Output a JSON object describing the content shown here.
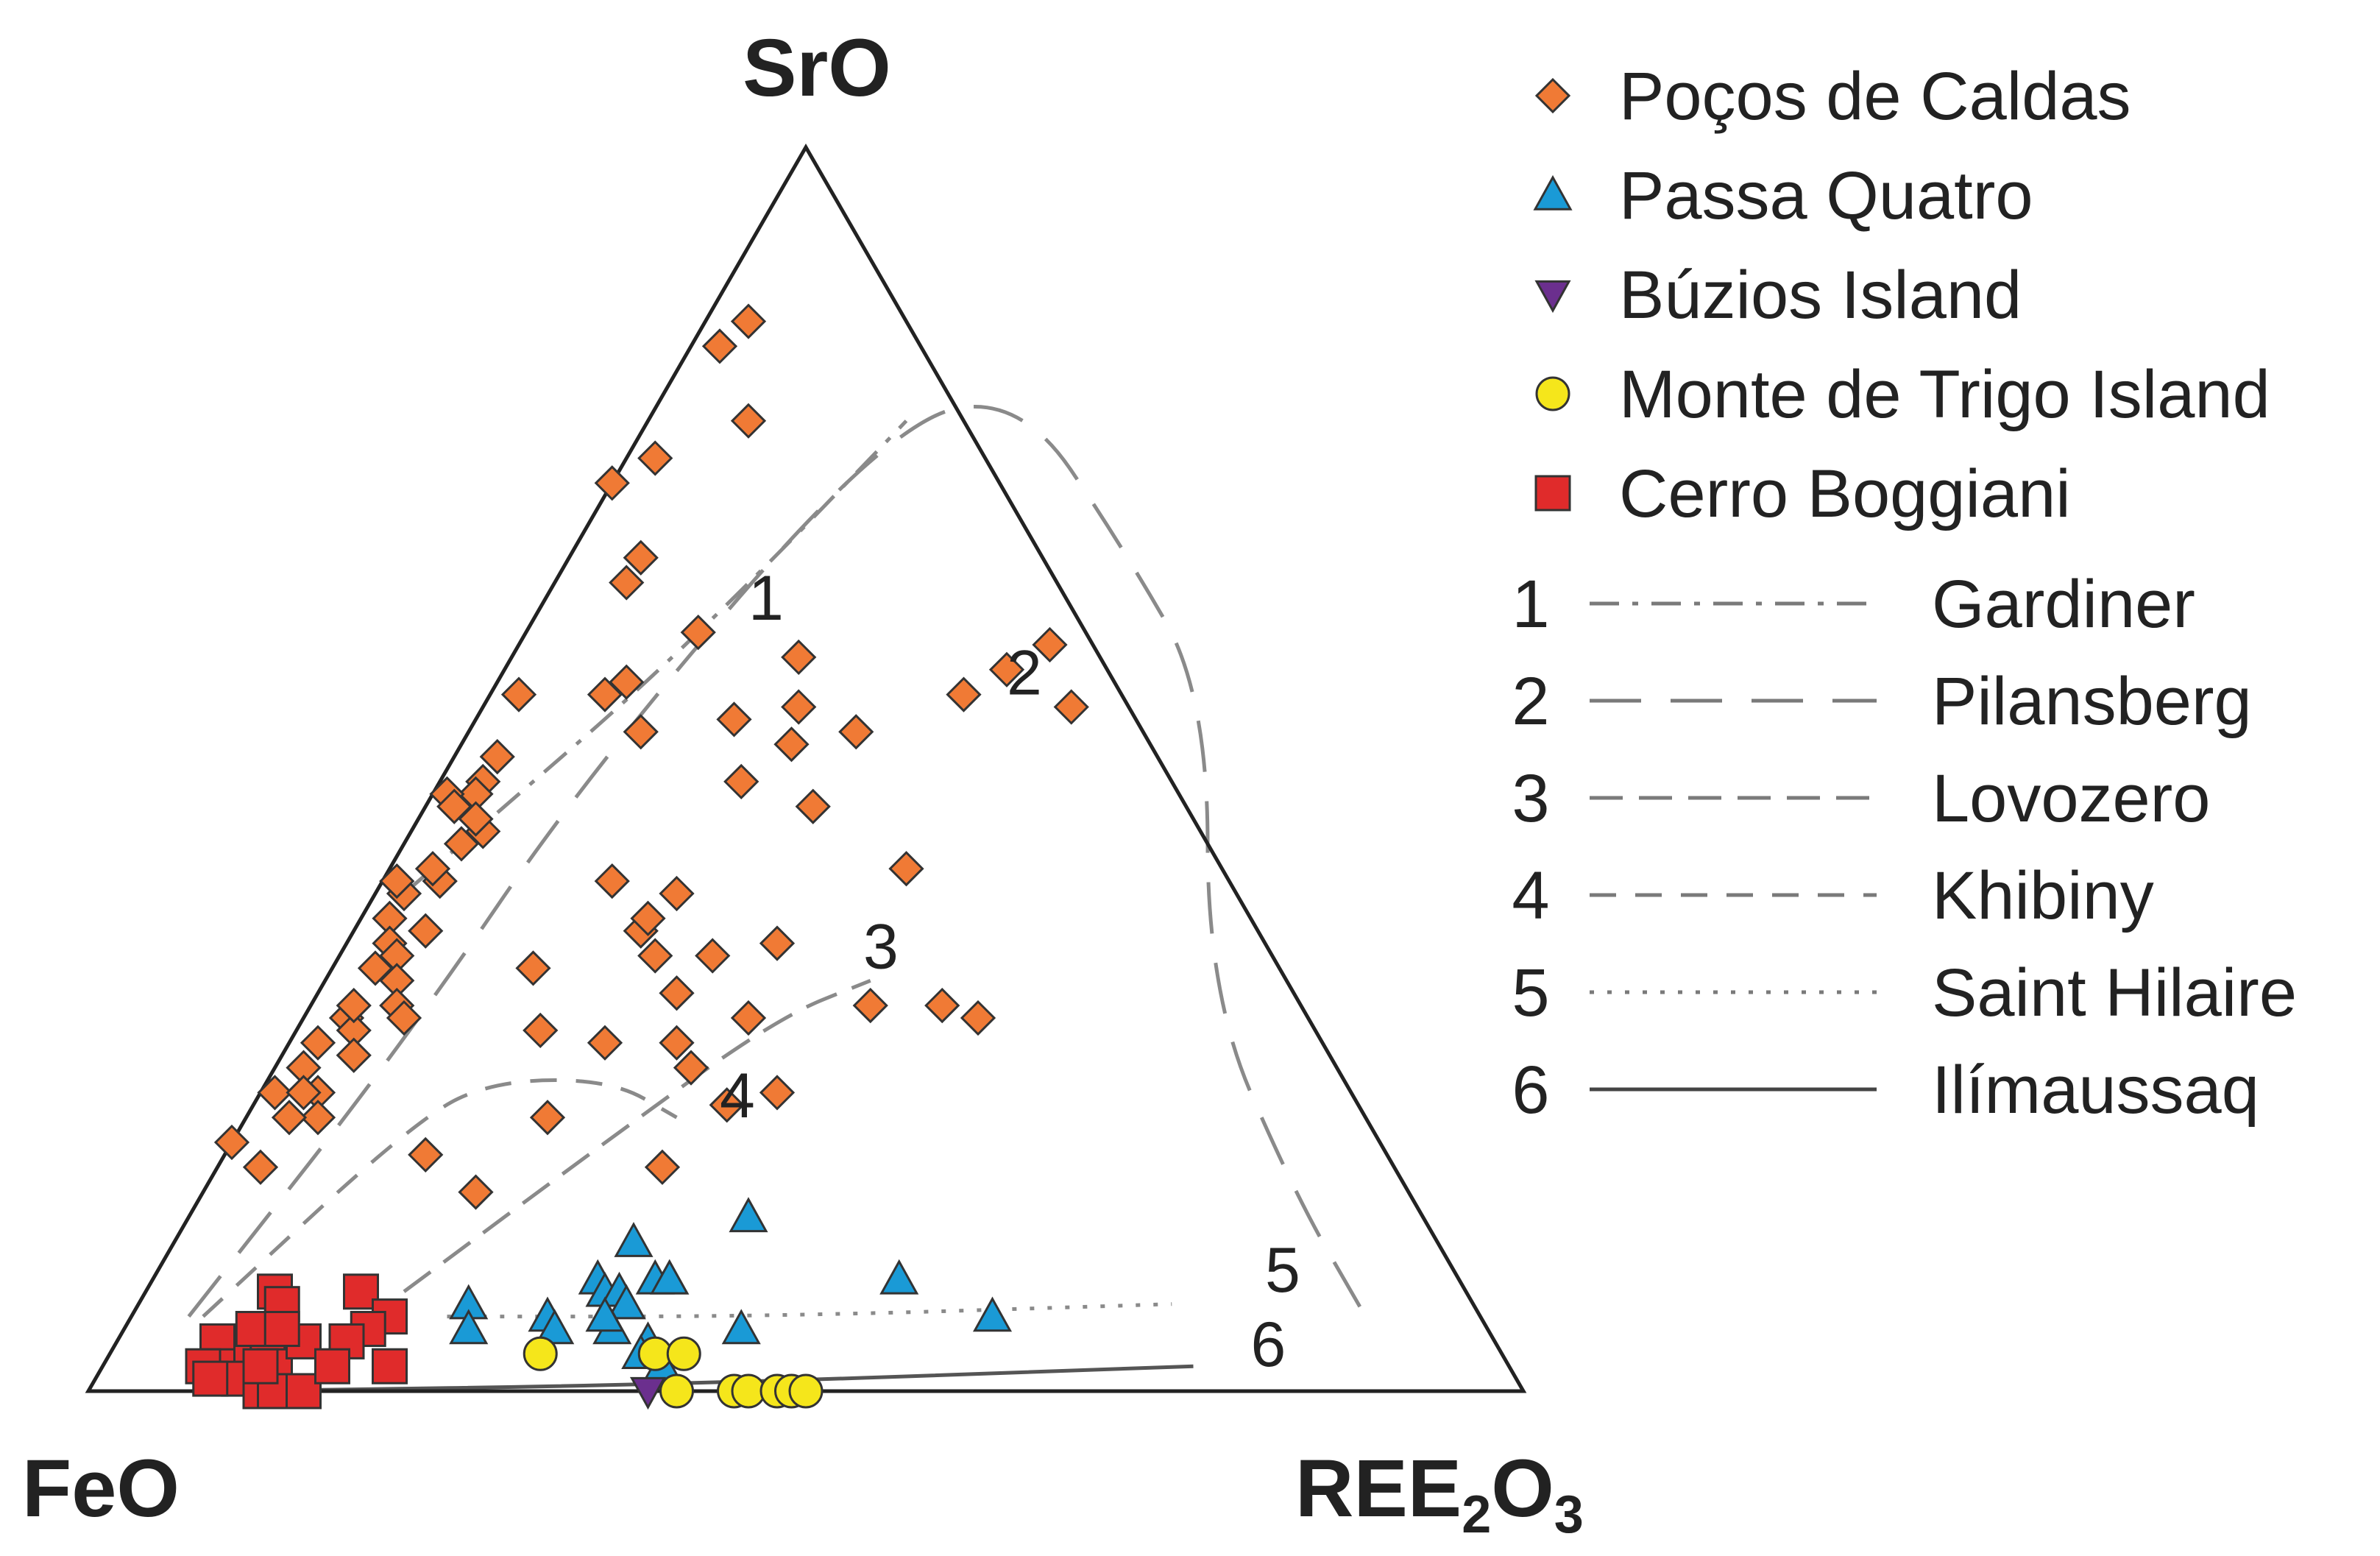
{
  "chart_data": {
    "type": "scatter",
    "subtype": "ternary",
    "vertices": {
      "top": "SrO",
      "left": "FeO",
      "right_main": "REE",
      "right_sub1": "2",
      "right_mid": "O",
      "right_sub2": "3"
    },
    "series": [
      {
        "name": "Poços de Caldas",
        "marker": "diamond",
        "color": "#f07a35",
        "points": [
          [
            0.03,
            0.86
          ],
          [
            0.02,
            0.84
          ],
          [
            0.07,
            0.78
          ],
          [
            0.02,
            0.75
          ],
          [
            0.0,
            0.73
          ],
          [
            0.05,
            0.65
          ],
          [
            0.05,
            0.67
          ],
          [
            0.12,
            0.61
          ],
          [
            0.09,
            0.57
          ],
          [
            0.12,
            0.53
          ],
          [
            0.2,
            0.59
          ],
          [
            0.22,
            0.55
          ],
          [
            0.18,
            0.54
          ],
          [
            0.27,
            0.53
          ],
          [
            0.27,
            0.47
          ],
          [
            0.35,
            0.58
          ],
          [
            0.23,
            0.52
          ],
          [
            0.33,
            0.56
          ],
          [
            0.21,
            0.4
          ],
          [
            0.2,
            0.37
          ],
          [
            0.36,
            0.42
          ],
          [
            0.21,
            0.49
          ],
          [
            0.16,
            0.41
          ],
          [
            0.2,
            0.38
          ],
          [
            0.22,
            0.35
          ],
          [
            0.25,
            0.32
          ],
          [
            0.08,
            0.56
          ],
          [
            0.04,
            0.44
          ],
          [
            0.02,
            0.56
          ],
          [
            0.05,
            0.45
          ],
          [
            0.03,
            0.51
          ],
          [
            0.03,
            0.49
          ],
          [
            0.03,
            0.48
          ],
          [
            0.04,
            0.46
          ],
          [
            0.01,
            0.48
          ],
          [
            0.02,
            0.47
          ],
          [
            0.04,
            0.41
          ],
          [
            0.02,
            0.4
          ],
          [
            0.03,
            0.42
          ],
          [
            0.01,
            0.41
          ],
          [
            0.02,
            0.38
          ],
          [
            0.03,
            0.36
          ],
          [
            0.05,
            0.37
          ],
          [
            0.04,
            0.35
          ],
          [
            0.03,
            0.34
          ],
          [
            0.05,
            0.33
          ],
          [
            0.06,
            0.31
          ],
          [
            0.03,
            0.3
          ],
          [
            0.04,
            0.29
          ],
          [
            0.02,
            0.28
          ],
          [
            0.02,
            0.26
          ],
          [
            0.04,
            0.24
          ],
          [
            0.05,
            0.27
          ],
          [
            0.03,
            0.31
          ],
          [
            0.07,
            0.3
          ],
          [
            0.01,
            0.24
          ],
          [
            0.05,
            0.22
          ],
          [
            0.03,
            0.24
          ],
          [
            0.03,
            0.22
          ],
          [
            0.0,
            0.2
          ],
          [
            0.03,
            0.18
          ],
          [
            0.14,
            0.34
          ],
          [
            0.17,
            0.29
          ],
          [
            0.26,
            0.35
          ],
          [
            0.3,
            0.36
          ],
          [
            0.39,
            0.31
          ],
          [
            0.44,
            0.31
          ],
          [
            0.47,
            0.3
          ],
          [
            0.27,
            0.28
          ],
          [
            0.29,
            0.26
          ],
          [
            0.33,
            0.23
          ],
          [
            0.36,
            0.24
          ],
          [
            0.21,
            0.22
          ],
          [
            0.37,
            0.6
          ],
          [
            0.41,
            0.55
          ],
          [
            0.22,
            0.28
          ],
          [
            0.31,
            0.18
          ],
          [
            0.14,
            0.19
          ],
          [
            0.19,
            0.16
          ],
          [
            0.31,
            0.3
          ]
        ]
      },
      {
        "name": "Passa Quatro",
        "marker": "triangle",
        "color": "#1a9ad6",
        "points": [
          [
            0.32,
            0.12
          ],
          [
            0.36,
            0.09
          ],
          [
            0.31,
            0.09
          ],
          [
            0.32,
            0.08
          ],
          [
            0.33,
            0.08
          ],
          [
            0.35,
            0.09
          ],
          [
            0.34,
            0.07
          ],
          [
            0.36,
            0.09
          ],
          [
            0.39,
            0.14
          ],
          [
            0.23,
            0.07
          ],
          [
            0.24,
            0.05
          ],
          [
            0.29,
            0.06
          ],
          [
            0.3,
            0.05
          ],
          [
            0.34,
            0.05
          ],
          [
            0.33,
            0.06
          ],
          [
            0.37,
            0.04
          ],
          [
            0.37,
            0.03
          ],
          [
            0.39,
            0.02
          ],
          [
            0.52,
            0.09
          ],
          [
            0.6,
            0.06
          ],
          [
            0.43,
            0.05
          ]
        ]
      },
      {
        "name": "Búzios Island",
        "marker": "triangle-down",
        "color": "#6b2f8e",
        "points": [
          [
            0.39,
            0.0
          ]
        ]
      },
      {
        "name": "Monte de Trigo Island",
        "marker": "circle",
        "color": "#f5e61b",
        "points": [
          [
            0.3,
            0.03
          ],
          [
            0.38,
            0.03
          ],
          [
            0.4,
            0.03
          ],
          [
            0.41,
            0.0
          ],
          [
            0.45,
            0.0
          ],
          [
            0.46,
            0.0
          ],
          [
            0.48,
            0.0
          ],
          [
            0.49,
            0.0
          ],
          [
            0.5,
            0.0
          ]
        ]
      },
      {
        "name": "Cerro Boggiani",
        "marker": "square",
        "color": "#e02b2b",
        "points": [
          [
            0.09,
            0.08
          ],
          [
            0.1,
            0.07
          ],
          [
            0.15,
            0.08
          ],
          [
            0.18,
            0.06
          ],
          [
            0.17,
            0.05
          ],
          [
            0.16,
            0.04
          ],
          [
            0.09,
            0.03
          ],
          [
            0.11,
            0.03
          ],
          [
            0.12,
            0.02
          ],
          [
            0.13,
            0.04
          ],
          [
            0.07,
            0.04
          ],
          [
            0.08,
            0.02
          ],
          [
            0.07,
            0.02
          ],
          [
            0.1,
            0.01
          ],
          [
            0.12,
            0.0
          ],
          [
            0.13,
            0.0
          ],
          [
            0.15,
            0.0
          ],
          [
            0.16,
            0.02
          ],
          [
            0.2,
            0.02
          ],
          [
            0.09,
            0.05
          ],
          [
            0.11,
            0.05
          ],
          [
            0.08,
            0.01
          ],
          [
            0.11,
            0.02
          ]
        ]
      }
    ],
    "curves": [
      {
        "num": "1",
        "name": "Gardiner",
        "style": "dashdot",
        "label_pos": [
          0.15,
          0.62
        ],
        "points": [
          [
            0.02,
            0.4
          ],
          [
            0.06,
            0.48
          ],
          [
            0.1,
            0.56
          ],
          [
            0.14,
            0.66
          ],
          [
            0.18,
            0.78
          ]
        ]
      },
      {
        "num": "2",
        "name": "Pilansberg",
        "style": "longdash",
        "label_pos": [
          0.36,
          0.56
        ],
        "points": [
          [
            0.04,
            0.06
          ],
          [
            0.08,
            0.28
          ],
          [
            0.1,
            0.5
          ],
          [
            0.17,
            0.78
          ],
          [
            0.25,
            0.8
          ],
          [
            0.38,
            0.68
          ],
          [
            0.5,
            0.56
          ],
          [
            0.62,
            0.32
          ],
          [
            0.76,
            0.16
          ],
          [
            0.86,
            0.06
          ]
        ]
      },
      {
        "num": "3",
        "name": "Lovozero",
        "style": "dashdash",
        "label_pos": [
          0.37,
          0.34
        ],
        "points": [
          [
            0.18,
            0.08
          ],
          [
            0.26,
            0.2
          ],
          [
            0.33,
            0.3
          ],
          [
            0.38,
            0.33
          ]
        ]
      },
      {
        "num": "4",
        "name": "Khibiny",
        "style": "medium-dash",
        "label_pos": [
          0.33,
          0.22
        ],
        "points": [
          [
            0.05,
            0.06
          ],
          [
            0.12,
            0.22
          ],
          [
            0.16,
            0.25
          ],
          [
            0.24,
            0.25
          ],
          [
            0.3,
            0.22
          ]
        ]
      },
      {
        "num": "5",
        "name": "Saint Hilaire",
        "style": "dotted",
        "label_pos": [
          0.78,
          0.08
        ],
        "points": [
          [
            0.22,
            0.06
          ],
          [
            0.45,
            0.06
          ],
          [
            0.72,
            0.07
          ]
        ]
      },
      {
        "num": "6",
        "name": "Ilímaussaq",
        "style": "solid",
        "label_pos": [
          0.8,
          0.02
        ],
        "points": [
          [
            0.1,
            0.0
          ],
          [
            0.4,
            0.005
          ],
          [
            0.76,
            0.02
          ]
        ]
      }
    ]
  }
}
